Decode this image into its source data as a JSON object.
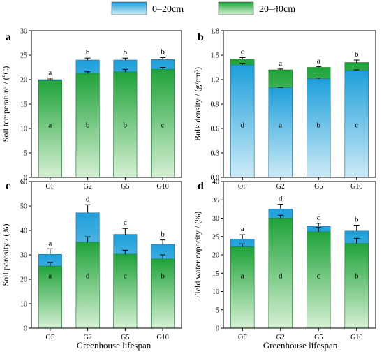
{
  "legend": {
    "items": [
      {
        "label": "0–20cm",
        "color": "#1AA0D8"
      },
      {
        "label": "20–40cm",
        "color": "#22A63A"
      }
    ]
  },
  "xlabel": "Greenhouse lifespan",
  "colors": {
    "shallow_top": "#1E9FDB",
    "shallow_bottom": "#CDEBF6",
    "deep_top": "#1FA33A",
    "deep_bottom": "#D6F0D3"
  },
  "chart_data": [
    {
      "panel": "a",
      "type": "bar",
      "categories": [
        "OF",
        "G2",
        "G5",
        "G10"
      ],
      "ylabel": "Soil temperature / (ºC)",
      "ylim": [
        0,
        30
      ],
      "yticks": [
        0,
        5,
        10,
        15,
        20,
        25,
        30
      ],
      "ytick_labels": [
        "0",
        "5",
        "10",
        "15",
        "20",
        "25",
        "30"
      ],
      "back_series": "0-20cm",
      "series": [
        {
          "name": "0–20cm",
          "values": [
            20.0,
            24.0,
            24.0,
            24.1
          ],
          "errors": [
            0.3,
            0.4,
            0.4,
            0.4
          ],
          "letters": [
            "a",
            "b",
            "b",
            "b"
          ]
        },
        {
          "name": "20–40cm",
          "values": [
            19.8,
            21.3,
            21.6,
            22.1
          ],
          "errors": [
            0.2,
            0.3,
            0.5,
            0.4
          ],
          "letters": [
            "a",
            "b",
            "b",
            "c"
          ]
        }
      ]
    },
    {
      "panel": "b",
      "type": "bar",
      "categories": [
        "OF",
        "G2",
        "G5",
        "G10"
      ],
      "ylabel": "Bulk density / (g/cm³)",
      "ylim": [
        0,
        1.8
      ],
      "yticks": [
        0,
        0.3,
        0.6,
        0.9,
        1.2,
        1.5,
        1.8
      ],
      "ytick_labels": [
        "0.0",
        "0.3",
        "0.6",
        "0.9",
        "1.2",
        "1.5",
        "1.8"
      ],
      "back_series": "20-40cm",
      "series": [
        {
          "name": "0–20cm",
          "values": [
            1.38,
            1.1,
            1.21,
            1.31
          ],
          "errors": [
            0.02,
            0.005,
            0.01,
            0.01
          ],
          "letters": [
            "d",
            "a",
            "b",
            "c"
          ]
        },
        {
          "name": "20–40cm",
          "values": [
            1.45,
            1.32,
            1.35,
            1.41
          ],
          "errors": [
            0.02,
            0.01,
            0.01,
            0.03
          ],
          "letters": [
            "c",
            "a",
            "a",
            "b"
          ]
        }
      ]
    },
    {
      "panel": "c",
      "type": "bar",
      "categories": [
        "OF",
        "G2",
        "G5",
        "G10"
      ],
      "ylabel": "Soil porosity / (%)",
      "ylim": [
        0,
        60
      ],
      "yticks": [
        0,
        10,
        20,
        30,
        40,
        50,
        60
      ],
      "ytick_labels": [
        "0",
        "10",
        "20",
        "30",
        "40",
        "50",
        "60"
      ],
      "back_series": "0-20cm",
      "series": [
        {
          "name": "0–20cm",
          "values": [
            30.2,
            47.2,
            38.4,
            34.3
          ],
          "errors": [
            2.3,
            3.3,
            2.4,
            1.8
          ],
          "letters": [
            "a",
            "d",
            "c",
            "b"
          ]
        },
        {
          "name": "20–40cm",
          "values": [
            25.4,
            35.2,
            30.3,
            28.3
          ],
          "errors": [
            1.5,
            2.2,
            1.6,
            1.7
          ],
          "letters": [
            "a",
            "d",
            "c",
            "b"
          ]
        }
      ]
    },
    {
      "panel": "d",
      "type": "bar",
      "categories": [
        "OF",
        "G2",
        "G5",
        "G10"
      ],
      "ylabel": "Field water capacity / (%)",
      "ylim": [
        0,
        40
      ],
      "yticks": [
        0,
        5,
        10,
        15,
        20,
        25,
        30,
        35,
        40
      ],
      "ytick_labels": [
        "0",
        "5",
        "10",
        "15",
        "20",
        "25",
        "30",
        "35",
        "40"
      ],
      "back_series": "0-20cm",
      "series": [
        {
          "name": "0–20cm",
          "values": [
            24.3,
            32.5,
            27.8,
            26.5
          ],
          "errors": [
            1.2,
            1.3,
            0.8,
            1.6
          ],
          "letters": [
            "a",
            "d",
            "c",
            "b"
          ]
        },
        {
          "name": "20–40cm",
          "values": [
            22.2,
            30.0,
            26.3,
            23.1
          ],
          "errors": [
            0.8,
            0.8,
            1.2,
            1.4
          ],
          "letters": [
            "a",
            "d",
            "c",
            "b"
          ]
        }
      ]
    }
  ]
}
